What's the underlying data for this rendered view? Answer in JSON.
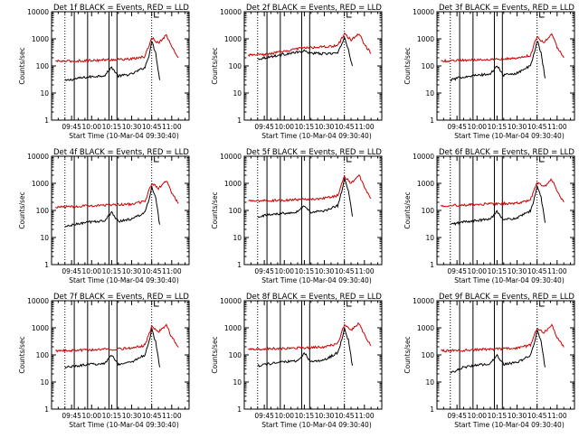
{
  "figure": {
    "ylabel": "Counts/sec",
    "xlabel": "Start Time (10-Mar-04 09:30:40)",
    "x_tick_labels": [
      "09:45",
      "10:00",
      "10:15",
      "10:30",
      "10:45",
      "11:00"
    ],
    "y_tick_labels": [
      "1",
      "10",
      "100",
      "1000",
      "10000"
    ],
    "colors": {
      "events": "#000000",
      "lld": "#cc0000",
      "axes": "#000000",
      "background": "#ffffff"
    }
  },
  "chart_data": [
    {
      "type": "line",
      "title": "Det 1f BLACK = Events, RED = LLD",
      "xlabel": "Start Time (10-Mar-04 09:30:40)",
      "ylabel": "Counts/sec",
      "xlim": [
        "09:30",
        "11:13"
      ],
      "ylim": [
        1,
        10000
      ],
      "y_scale": "log",
      "x_ticks": [
        "09:45",
        "10:00",
        "10:15",
        "10:30",
        "10:45",
        "11:00"
      ],
      "y_ticks": [
        1,
        10,
        100,
        1000,
        10000
      ],
      "dotted_lines": [
        "09:40",
        "10:45"
      ],
      "solid_lines": [
        "09:47",
        "09:57",
        "10:13",
        "10:19"
      ],
      "series": [
        {
          "name": "Events",
          "color": "#000000",
          "x": [
            "09:40",
            "09:50",
            "10:00",
            "10:10",
            "10:15",
            "10:20",
            "10:30",
            "10:40",
            "10:43",
            "10:45",
            "10:48",
            "10:51"
          ],
          "y": [
            28,
            35,
            40,
            45,
            90,
            42,
            50,
            90,
            250,
            800,
            300,
            30
          ]
        },
        {
          "name": "LLD",
          "color": "#cc0000",
          "x": [
            "09:33",
            "09:45",
            "10:00",
            "10:15",
            "10:30",
            "10:40",
            "10:45",
            "10:50",
            "10:56",
            "11:00",
            "11:05"
          ],
          "y": [
            150,
            150,
            160,
            170,
            180,
            220,
            1100,
            700,
            1400,
            500,
            200
          ]
        }
      ]
    },
    {
      "type": "line",
      "title": "Det 2f BLACK = Events, RED = LLD",
      "xlabel": "Start Time (10-Mar-04 09:30:40)",
      "ylabel": "Counts/sec",
      "xlim": [
        "09:30",
        "11:13"
      ],
      "ylim": [
        1,
        10000
      ],
      "y_scale": "log",
      "x_ticks": [
        "09:45",
        "10:00",
        "10:15",
        "10:30",
        "10:45",
        "11:00"
      ],
      "y_ticks": [
        1,
        10,
        100,
        1000,
        10000
      ],
      "dotted_lines": [
        "09:40",
        "10:45"
      ],
      "solid_lines": [
        "09:47",
        "09:57",
        "10:13",
        "10:19"
      ],
      "series": [
        {
          "name": "Events",
          "color": "#000000",
          "x": [
            "09:40",
            "09:50",
            "10:00",
            "10:10",
            "10:15",
            "10:20",
            "10:30",
            "10:40",
            "10:43",
            "10:45",
            "10:48",
            "10:51"
          ],
          "y": [
            180,
            220,
            270,
            320,
            350,
            300,
            280,
            300,
            600,
            1200,
            400,
            100
          ]
        },
        {
          "name": "LLD",
          "color": "#cc0000",
          "x": [
            "09:33",
            "09:45",
            "10:00",
            "10:15",
            "10:30",
            "10:40",
            "10:45",
            "10:50",
            "10:56",
            "11:00",
            "11:05"
          ],
          "y": [
            250,
            260,
            350,
            480,
            500,
            550,
            1500,
            900,
            1600,
            600,
            300
          ]
        }
      ]
    },
    {
      "type": "line",
      "title": "Det 3f BLACK = Events, RED = LLD",
      "xlabel": "Start Time (10-Mar-04 09:30:40)",
      "ylabel": "Counts/sec",
      "xlim": [
        "09:30",
        "11:13"
      ],
      "ylim": [
        1,
        10000
      ],
      "y_scale": "log",
      "x_ticks": [
        "09:45",
        "10:00",
        "10:15",
        "10:30",
        "10:45",
        "11:00"
      ],
      "y_ticks": [
        1,
        10,
        100,
        1000,
        10000
      ],
      "dotted_lines": [
        "09:40",
        "10:45"
      ],
      "solid_lines": [
        "09:47",
        "09:57",
        "10:13",
        "10:19"
      ],
      "series": [
        {
          "name": "Events",
          "color": "#000000",
          "x": [
            "09:40",
            "09:50",
            "10:00",
            "10:10",
            "10:15",
            "10:20",
            "10:30",
            "10:40",
            "10:43",
            "10:45",
            "10:48",
            "10:51"
          ],
          "y": [
            30,
            40,
            45,
            50,
            100,
            45,
            55,
            100,
            300,
            900,
            300,
            35
          ]
        },
        {
          "name": "LLD",
          "color": "#cc0000",
          "x": [
            "09:33",
            "09:45",
            "10:00",
            "10:15",
            "10:30",
            "10:40",
            "10:45",
            "10:50",
            "10:56",
            "11:00",
            "11:05"
          ],
          "y": [
            150,
            160,
            170,
            180,
            190,
            250,
            1200,
            700,
            1500,
            500,
            200
          ]
        }
      ]
    },
    {
      "type": "line",
      "title": "Det 4f BLACK = Events, RED = LLD",
      "xlabel": "Start Time (10-Mar-04 09:30:40)",
      "ylabel": "Counts/sec",
      "xlim": [
        "09:30",
        "11:13"
      ],
      "ylim": [
        1,
        10000
      ],
      "y_scale": "log",
      "x_ticks": [
        "09:45",
        "10:00",
        "10:15",
        "10:30",
        "10:45",
        "11:00"
      ],
      "y_ticks": [
        1,
        10,
        100,
        1000,
        10000
      ],
      "dotted_lines": [
        "09:40",
        "10:45"
      ],
      "solid_lines": [
        "09:47",
        "09:57",
        "10:13",
        "10:19"
      ],
      "series": [
        {
          "name": "Events",
          "color": "#000000",
          "x": [
            "09:40",
            "09:50",
            "10:00",
            "10:10",
            "10:15",
            "10:20",
            "10:30",
            "10:40",
            "10:43",
            "10:45",
            "10:48",
            "10:51"
          ],
          "y": [
            25,
            32,
            38,
            42,
            85,
            40,
            48,
            85,
            250,
            750,
            280,
            30
          ]
        },
        {
          "name": "LLD",
          "color": "#cc0000",
          "x": [
            "09:33",
            "09:45",
            "10:00",
            "10:15",
            "10:30",
            "10:40",
            "10:45",
            "10:50",
            "10:56",
            "11:00",
            "11:05"
          ],
          "y": [
            130,
            140,
            150,
            160,
            170,
            220,
            1000,
            650,
            1300,
            450,
            180
          ]
        }
      ]
    },
    {
      "type": "line",
      "title": "Det 5f BLACK = Events, RED = LLD",
      "xlabel": "Start Time (10-Mar-04 09:30:40)",
      "ylabel": "Counts/sec",
      "xlim": [
        "09:30",
        "11:13"
      ],
      "ylim": [
        1,
        10000
      ],
      "y_scale": "log",
      "x_ticks": [
        "09:45",
        "10:00",
        "10:15",
        "10:30",
        "10:45",
        "11:00"
      ],
      "y_ticks": [
        1,
        10,
        100,
        1000,
        10000
      ],
      "dotted_lines": [
        "09:40",
        "10:45"
      ],
      "solid_lines": [
        "09:47",
        "09:57",
        "10:13",
        "10:19"
      ],
      "series": [
        {
          "name": "Events",
          "color": "#000000",
          "x": [
            "09:40",
            "09:50",
            "10:00",
            "10:10",
            "10:15",
            "10:20",
            "10:30",
            "10:40",
            "10:43",
            "10:45",
            "10:48",
            "10:51"
          ],
          "y": [
            60,
            70,
            80,
            90,
            150,
            85,
            95,
            150,
            500,
            1500,
            500,
            60
          ]
        },
        {
          "name": "LLD",
          "color": "#cc0000",
          "x": [
            "09:33",
            "09:45",
            "10:00",
            "10:15",
            "10:30",
            "10:40",
            "10:45",
            "10:50",
            "10:56",
            "11:00",
            "11:05"
          ],
          "y": [
            220,
            230,
            240,
            260,
            280,
            350,
            1800,
            1000,
            2000,
            700,
            280
          ]
        }
      ]
    },
    {
      "type": "line",
      "title": "Det 6f BLACK = Events, RED = LLD",
      "xlabel": "Start Time (10-Mar-04 09:30:40)",
      "ylabel": "Counts/sec",
      "xlim": [
        "09:30",
        "11:13"
      ],
      "ylim": [
        1,
        10000
      ],
      "y_scale": "log",
      "x_ticks": [
        "09:45",
        "10:00",
        "10:15",
        "10:30",
        "10:45",
        "11:00"
      ],
      "y_ticks": [
        1,
        10,
        100,
        1000,
        10000
      ],
      "dotted_lines": [
        "09:40",
        "10:45"
      ],
      "solid_lines": [
        "09:47",
        "09:57",
        "10:13",
        "10:19"
      ],
      "series": [
        {
          "name": "Events",
          "color": "#000000",
          "x": [
            "09:40",
            "09:50",
            "10:00",
            "10:10",
            "10:15",
            "10:20",
            "10:30",
            "10:40",
            "10:43",
            "10:45",
            "10:48",
            "10:51"
          ],
          "y": [
            30,
            38,
            42,
            48,
            95,
            45,
            52,
            95,
            280,
            850,
            300,
            35
          ]
        },
        {
          "name": "LLD",
          "color": "#cc0000",
          "x": [
            "09:33",
            "09:45",
            "10:00",
            "10:15",
            "10:30",
            "10:40",
            "10:45",
            "10:50",
            "10:56",
            "11:00",
            "11:05"
          ],
          "y": [
            150,
            155,
            165,
            175,
            185,
            240,
            1100,
            700,
            1400,
            500,
            200
          ]
        }
      ]
    },
    {
      "type": "line",
      "title": "Det 7f BLACK = Events, RED = LLD",
      "xlabel": "Start Time (10-Mar-04 09:30:40)",
      "ylabel": "Counts/sec",
      "xlim": [
        "09:30",
        "11:13"
      ],
      "ylim": [
        1,
        10000
      ],
      "y_scale": "log",
      "x_ticks": [
        "09:45",
        "10:00",
        "10:15",
        "10:30",
        "10:45",
        "11:00"
      ],
      "y_ticks": [
        1,
        10,
        100,
        1000,
        10000
      ],
      "dotted_lines": [
        "09:40",
        "10:45"
      ],
      "solid_lines": [
        "09:47",
        "09:57",
        "10:13",
        "10:19"
      ],
      "series": [
        {
          "name": "Events",
          "color": "#000000",
          "x": [
            "09:40",
            "09:50",
            "10:00",
            "10:10",
            "10:15",
            "10:20",
            "10:30",
            "10:40",
            "10:43",
            "10:45",
            "10:48",
            "10:51"
          ],
          "y": [
            35,
            40,
            45,
            50,
            100,
            45,
            55,
            100,
            300,
            900,
            300,
            35
          ]
        },
        {
          "name": "LLD",
          "color": "#cc0000",
          "x": [
            "09:33",
            "09:45",
            "10:00",
            "10:15",
            "10:30",
            "10:40",
            "10:45",
            "10:50",
            "10:56",
            "11:00",
            "11:05"
          ],
          "y": [
            140,
            145,
            155,
            165,
            175,
            230,
            1100,
            700,
            1300,
            450,
            190
          ]
        }
      ]
    },
    {
      "type": "line",
      "title": "Det 8f BLACK = Events, RED = LLD",
      "xlabel": "Start Time (10-Mar-04 09:30:40)",
      "ylabel": "Counts/sec",
      "xlim": [
        "09:30",
        "11:13"
      ],
      "ylim": [
        1,
        10000
      ],
      "y_scale": "log",
      "x_ticks": [
        "09:45",
        "10:00",
        "10:15",
        "10:30",
        "10:45",
        "11:00"
      ],
      "y_ticks": [
        1,
        10,
        100,
        1000,
        10000
      ],
      "dotted_lines": [
        "09:40",
        "10:45"
      ],
      "solid_lines": [
        "09:47",
        "09:57",
        "10:13",
        "10:19"
      ],
      "series": [
        {
          "name": "Events",
          "color": "#000000",
          "x": [
            "09:40",
            "09:50",
            "10:00",
            "10:10",
            "10:15",
            "10:20",
            "10:30",
            "10:40",
            "10:43",
            "10:45",
            "10:48",
            "10:51"
          ],
          "y": [
            40,
            48,
            55,
            60,
            120,
            55,
            65,
            120,
            350,
            1000,
            350,
            40
          ]
        },
        {
          "name": "LLD",
          "color": "#cc0000",
          "x": [
            "09:33",
            "09:45",
            "10:00",
            "10:15",
            "10:30",
            "10:40",
            "10:45",
            "10:50",
            "10:56",
            "11:00",
            "11:05"
          ],
          "y": [
            160,
            165,
            175,
            185,
            195,
            260,
            1300,
            800,
            1500,
            550,
            220
          ]
        }
      ]
    },
    {
      "type": "line",
      "title": "Det 9f BLACK = Events, RED = LLD",
      "xlabel": "Start Time (10-Mar-04 09:30:40)",
      "ylabel": "Counts/sec",
      "xlim": [
        "09:30",
        "11:13"
      ],
      "ylim": [
        1,
        10000
      ],
      "y_scale": "log",
      "x_ticks": [
        "09:45",
        "10:00",
        "10:15",
        "10:30",
        "10:45",
        "11:00"
      ],
      "y_ticks": [
        1,
        10,
        100,
        1000,
        10000
      ],
      "dotted_lines": [
        "09:40",
        "10:45"
      ],
      "solid_lines": [
        "09:47",
        "09:57",
        "10:13",
        "10:19"
      ],
      "series": [
        {
          "name": "Events",
          "color": "#000000",
          "x": [
            "09:40",
            "09:50",
            "10:00",
            "10:10",
            "10:15",
            "10:20",
            "10:30",
            "10:40",
            "10:43",
            "10:45",
            "10:48",
            "10:51"
          ],
          "y": [
            22,
            35,
            42,
            48,
            95,
            45,
            52,
            95,
            280,
            850,
            300,
            35
          ]
        },
        {
          "name": "LLD",
          "color": "#cc0000",
          "x": [
            "09:33",
            "09:45",
            "10:00",
            "10:15",
            "10:30",
            "10:40",
            "10:45",
            "10:50",
            "10:56",
            "11:00",
            "11:05"
          ],
          "y": [
            140,
            145,
            155,
            165,
            175,
            230,
            1000,
            650,
            1300,
            450,
            190
          ]
        }
      ]
    }
  ]
}
